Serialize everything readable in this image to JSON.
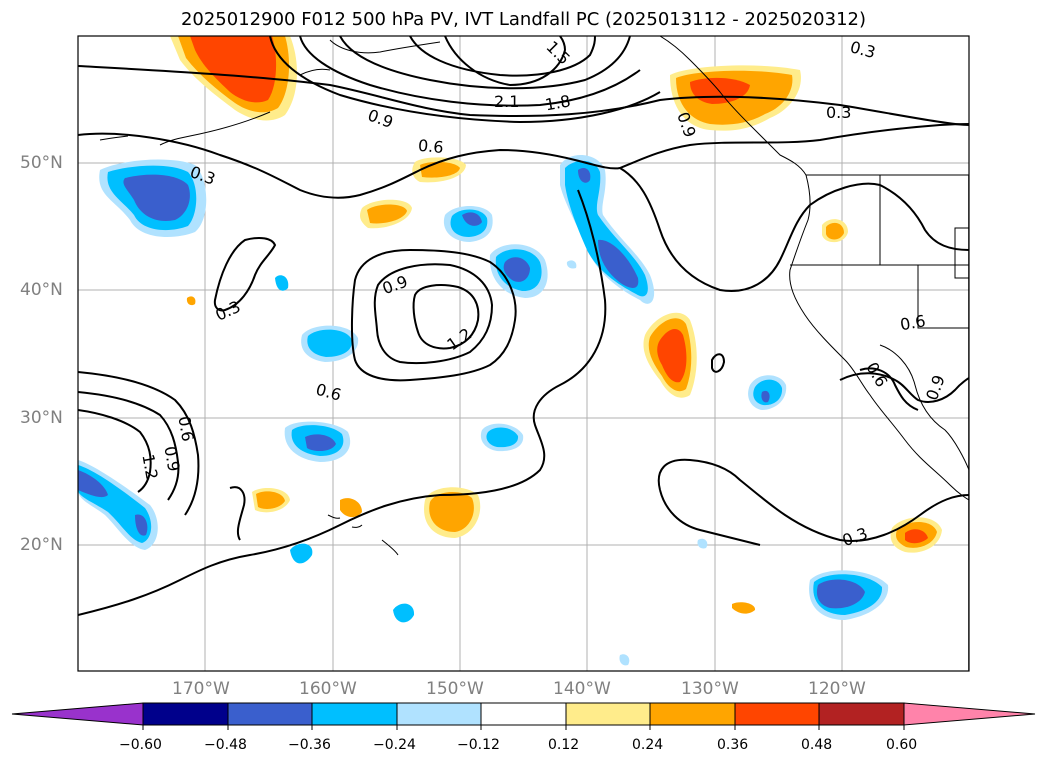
{
  "title": "2025012900 F012 500 hPa PV, IVT Landfall PC (2025013112 - 2025020312)",
  "lat_labels": [
    "50°N",
    "40°N",
    "30°N",
    "20°N"
  ],
  "lon_labels": [
    "170°W",
    "160°W",
    "150°W",
    "140°W",
    "130°W",
    "120°W"
  ],
  "contour_labels": [
    "0.3",
    "0.3",
    "0.3",
    "0.3",
    "0.6",
    "0.6",
    "0.6",
    "0.6",
    "0.9",
    "0.9",
    "0.9",
    "0.9",
    "0.9",
    "1.2",
    "1.2",
    "1.5",
    "1.8",
    "2.1",
    "0.3",
    "0.6"
  ],
  "colorbar": {
    "ticks": [
      "−0.60",
      "−0.48",
      "−0.36",
      "−0.24",
      "−0.12",
      "0.12",
      "0.24",
      "0.36",
      "0.48",
      "0.60"
    ],
    "colors": [
      "#9932cc",
      "#00008b",
      "#3a5fcd",
      "#00bfff",
      "#b0e2ff",
      "#ffffff",
      "#ffec8b",
      "#ffa500",
      "#ff4500",
      "#b22222",
      "#ff83aa"
    ]
  }
}
